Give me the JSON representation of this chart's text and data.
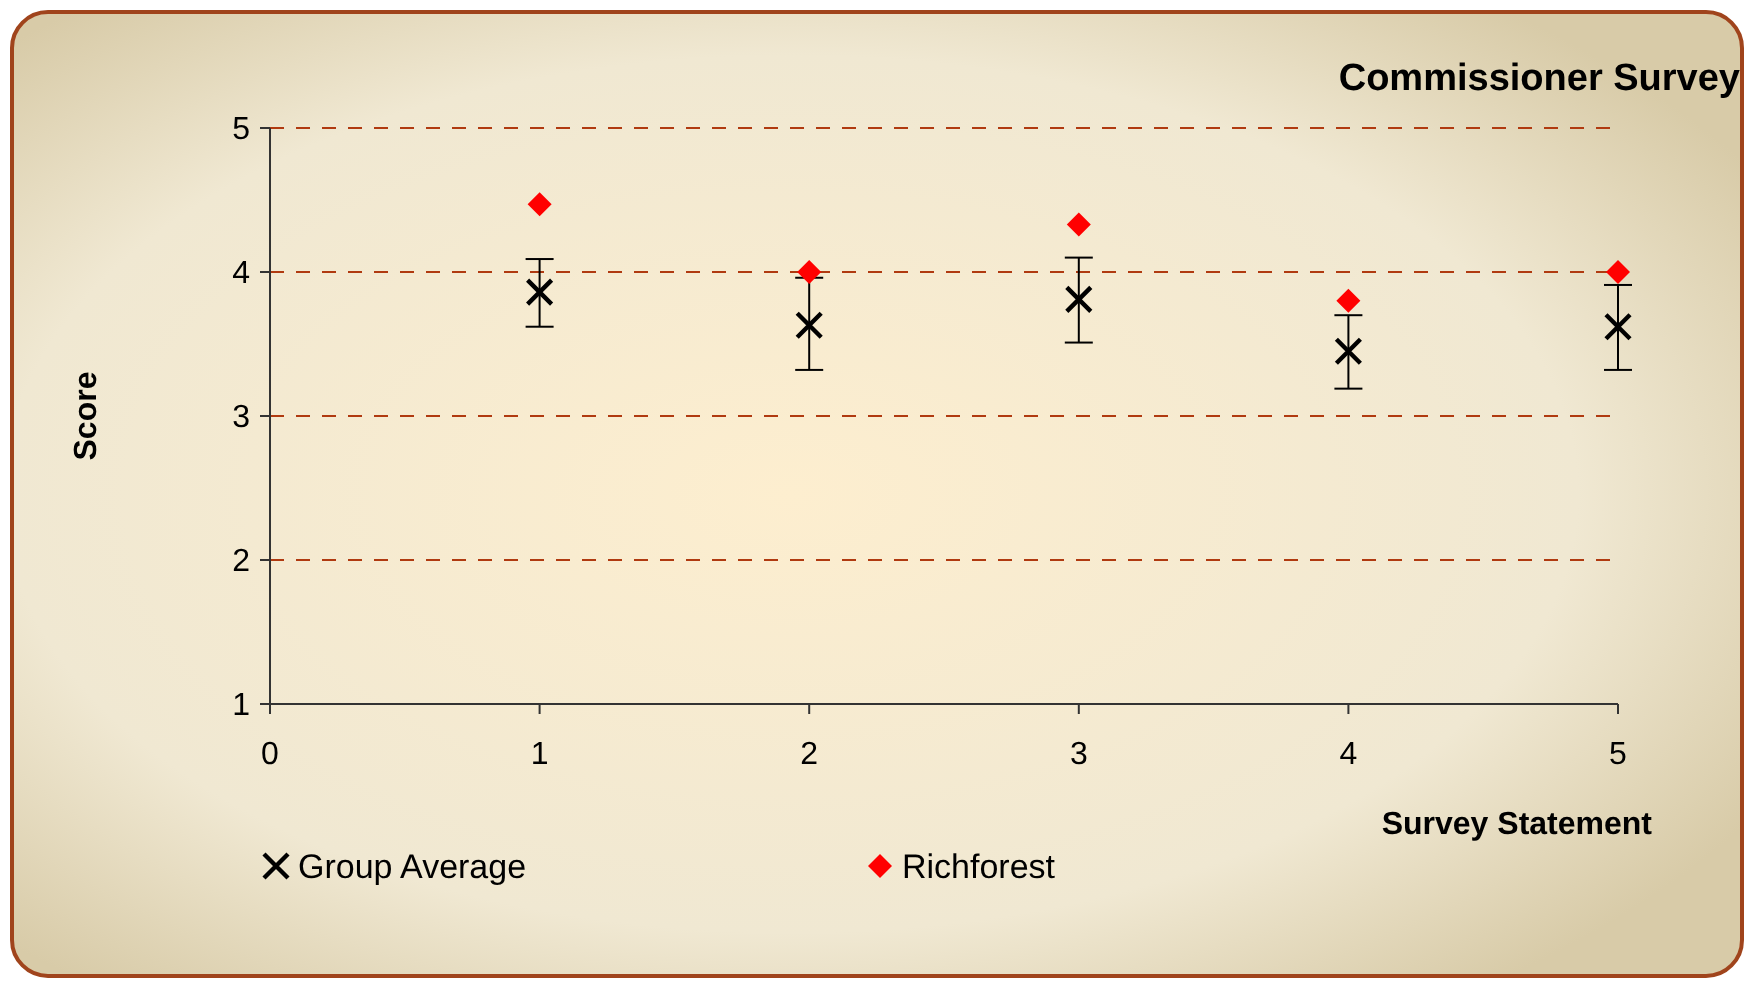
{
  "chart_data": {
    "type": "scatter",
    "title": "Commissioner Survey",
    "xlabel": "Survey Statement",
    "ylabel": "Score",
    "xlim": [
      0,
      5
    ],
    "xticks": [
      0,
      1,
      2,
      3,
      4,
      5
    ],
    "ylim": [
      1,
      5
    ],
    "yticks": [
      1,
      2,
      3,
      4,
      5
    ],
    "grid": "y",
    "legend": "bottom",
    "series": [
      {
        "name": "Group Average",
        "color": "#000000",
        "marker": "cross",
        "x": [
          1,
          2,
          3,
          4,
          5
        ],
        "values": [
          3.86,
          3.63,
          3.81,
          3.45,
          3.62
        ],
        "errors": [
          [
            3.62,
            4.09
          ],
          [
            3.32,
            3.96
          ],
          [
            3.51,
            4.1
          ],
          [
            3.19,
            3.7
          ],
          [
            3.32,
            3.91
          ]
        ]
      },
      {
        "name": "Richforest",
        "color": "#ff0000",
        "marker": "diamond",
        "x": [
          1,
          2,
          3,
          4,
          5
        ],
        "values": [
          4.47,
          4.0,
          4.33,
          3.8,
          4.0
        ]
      }
    ]
  }
}
